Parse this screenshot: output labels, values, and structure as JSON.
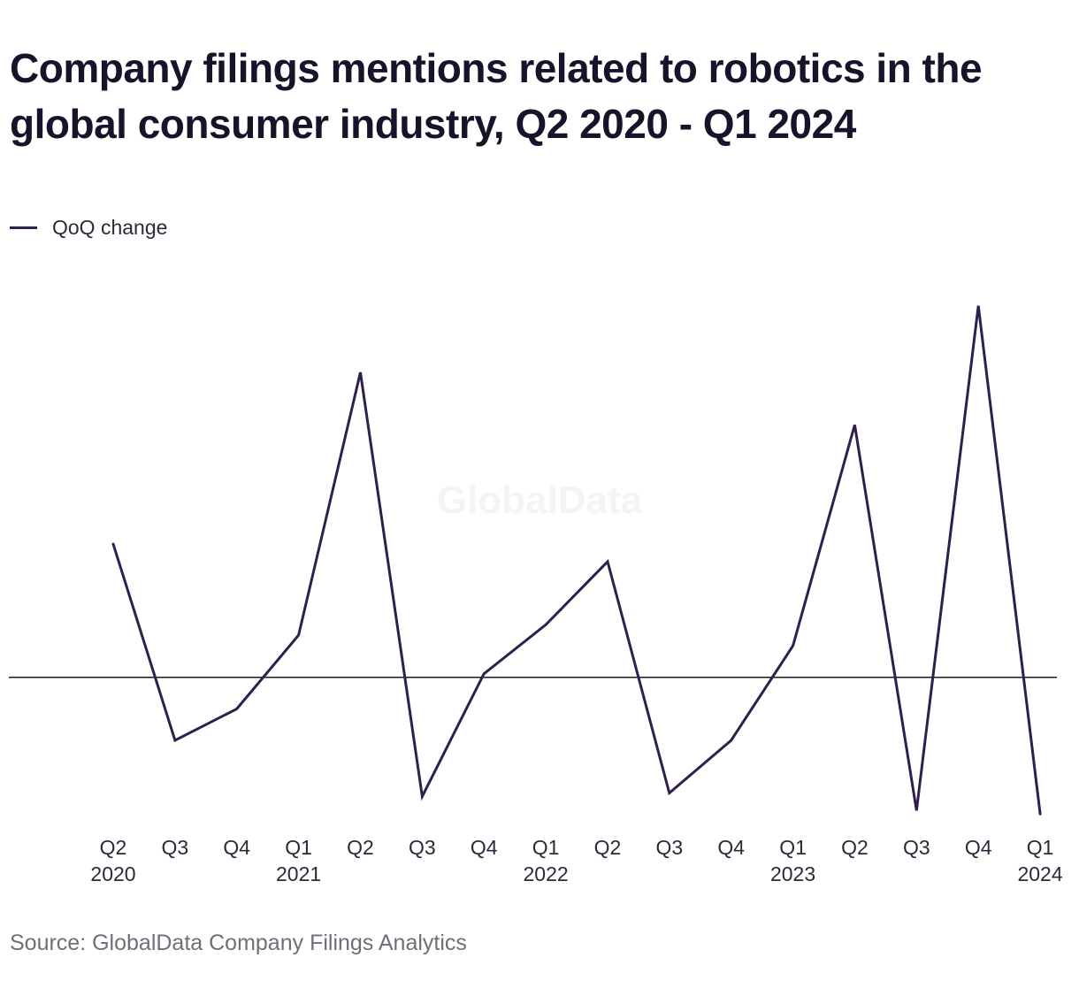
{
  "title": "Company filings mentions related to robotics in the global consumer industry, Q2 2020 - Q1 2024",
  "source": "Source: GlobalData Company Filings Analytics",
  "watermark": "GlobalData",
  "colors": {
    "series": "#2e1f4d",
    "zero_line": "#1a1a1a",
    "text": "#2a2a3a",
    "source_text": "#6f6f78"
  },
  "chart_data": {
    "type": "line",
    "title": "Company filings mentions related to robotics in the global consumer industry, Q2 2020 - Q1 2024",
    "xlabel": "",
    "ylabel": "",
    "categories": [
      "Q2 2020",
      "Q3 2020",
      "Q4 2020",
      "Q1 2021",
      "Q2 2021",
      "Q3 2021",
      "Q4 2021",
      "Q1 2022",
      "Q2 2022",
      "Q3 2022",
      "Q4 2022",
      "Q1 2023",
      "Q2 2023",
      "Q3 2023",
      "Q4 2023",
      "Q1 2024"
    ],
    "tick_labels": [
      {
        "quarter": "Q2",
        "year": "2020"
      },
      {
        "quarter": "Q3",
        "year": ""
      },
      {
        "quarter": "Q4",
        "year": ""
      },
      {
        "quarter": "Q1",
        "year": "2021"
      },
      {
        "quarter": "Q2",
        "year": ""
      },
      {
        "quarter": "Q3",
        "year": ""
      },
      {
        "quarter": "Q4",
        "year": ""
      },
      {
        "quarter": "Q1",
        "year": "2022"
      },
      {
        "quarter": "Q2",
        "year": ""
      },
      {
        "quarter": "Q3",
        "year": ""
      },
      {
        "quarter": "Q4",
        "year": ""
      },
      {
        "quarter": "Q1",
        "year": "2023"
      },
      {
        "quarter": "Q2",
        "year": ""
      },
      {
        "quarter": "Q3",
        "year": ""
      },
      {
        "quarter": "Q4",
        "year": ""
      },
      {
        "quarter": "Q1",
        "year": "2024"
      }
    ],
    "series": [
      {
        "name": "QoQ change",
        "color": "#2e1f4d",
        "values": [
          38,
          -18,
          -9,
          12,
          87,
          -34,
          1,
          15,
          33,
          -33,
          -18,
          9,
          72,
          -38,
          106,
          -39
        ]
      }
    ],
    "ylim": [
      -45,
      115
    ],
    "zero_line": true,
    "grid": false,
    "legend": "top-left"
  }
}
